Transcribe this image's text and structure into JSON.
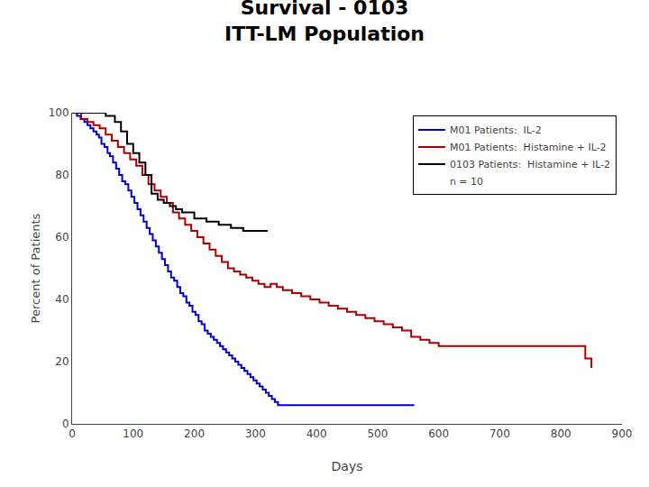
{
  "chart_data": {
    "type": "step",
    "title": "Survival - 0103",
    "subtitle": "ITT-LM Population",
    "x_label": "Days",
    "y_label": "Percent of Patients",
    "xlim": [
      0,
      900
    ],
    "ylim": [
      0,
      100
    ],
    "xticks": [
      0,
      100,
      200,
      300,
      400,
      500,
      600,
      700,
      800,
      900
    ],
    "yticks": [
      0,
      20,
      40,
      60,
      80,
      100
    ],
    "grid": false,
    "legend": "upper right",
    "annotations": [
      "n = 10"
    ],
    "series": [
      {
        "name": "M01 Patients:  IL-2",
        "color": "#0000cc",
        "x": [
          0,
          8,
          14,
          20,
          25,
          30,
          35,
          40,
          44,
          48,
          53,
          58,
          62,
          67,
          72,
          77,
          82,
          87,
          92,
          97,
          102,
          107,
          112,
          117,
          122,
          127,
          132,
          137,
          142,
          147,
          152,
          157,
          162,
          167,
          172,
          177,
          182,
          187,
          192,
          197,
          202,
          207,
          212,
          217,
          222,
          227,
          232,
          237,
          242,
          247,
          252,
          257,
          262,
          267,
          272,
          277,
          282,
          287,
          292,
          297,
          302,
          307,
          312,
          317,
          322,
          327,
          332,
          337,
          342,
          350,
          360,
          375,
          395,
          420,
          460,
          510,
          560
        ],
        "values": [
          100,
          99,
          98,
          97,
          96,
          95,
          94,
          93,
          92,
          90,
          89,
          87,
          86,
          84,
          82,
          80,
          78,
          77,
          75,
          73,
          71,
          69,
          67,
          65,
          63,
          61,
          59,
          57,
          55,
          53,
          51,
          49,
          47,
          46,
          44,
          42,
          41,
          39,
          38,
          36,
          35,
          33,
          32,
          30,
          29,
          28,
          27,
          26,
          25,
          24,
          23,
          22,
          21,
          20,
          19,
          18,
          17,
          16,
          15,
          14,
          13,
          12,
          11,
          10,
          9,
          8,
          7,
          6,
          6,
          6,
          6,
          6,
          6,
          6,
          6,
          6,
          6
        ]
      },
      {
        "name": "M01 Patients:  Histamine + IL-2",
        "color": "#aa0000",
        "x": [
          0,
          15,
          25,
          35,
          45,
          55,
          65,
          75,
          85,
          95,
          105,
          115,
          125,
          135,
          145,
          155,
          165,
          175,
          185,
          195,
          205,
          215,
          225,
          235,
          245,
          255,
          265,
          275,
          285,
          295,
          305,
          315,
          325,
          335,
          345,
          360,
          375,
          390,
          405,
          420,
          435,
          450,
          465,
          480,
          495,
          510,
          525,
          540,
          555,
          570,
          585,
          600,
          610,
          620,
          650,
          700,
          750,
          800,
          840,
          850
        ],
        "values": [
          100,
          98,
          97,
          96,
          95,
          93,
          91,
          89,
          87,
          85,
          83,
          80,
          77,
          75,
          73,
          71,
          68,
          66,
          64,
          62,
          60,
          58,
          56,
          54,
          52,
          50,
          49,
          48,
          47,
          46,
          45,
          44,
          45,
          44,
          43,
          42,
          41,
          40,
          39,
          38,
          37,
          36,
          35,
          34,
          33,
          32,
          31,
          30,
          28,
          27,
          26,
          25,
          25,
          25,
          25,
          25,
          25,
          25,
          21,
          18
        ]
      },
      {
        "name": "0103 Patients:  Histamine + IL-2",
        "color": "#000000",
        "x": [
          0,
          10,
          20,
          40,
          55,
          70,
          80,
          90,
          100,
          110,
          120,
          130,
          140,
          150,
          160,
          170,
          180,
          200,
          220,
          240,
          260,
          280,
          300,
          320
        ],
        "values": [
          100,
          100,
          100,
          100,
          99,
          97,
          94,
          90,
          87,
          84,
          80,
          74,
          72,
          71,
          70,
          69,
          68,
          66,
          65,
          64,
          63,
          62,
          62,
          62
        ]
      }
    ]
  }
}
